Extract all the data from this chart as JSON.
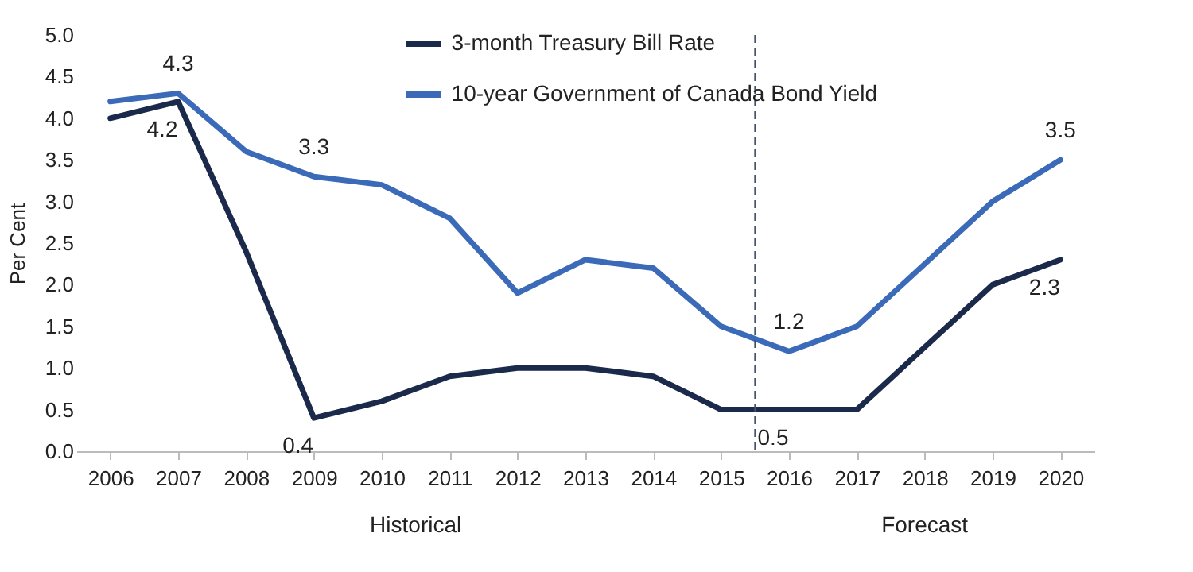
{
  "chart_data": {
    "type": "line",
    "x": [
      2006,
      2007,
      2008,
      2009,
      2010,
      2011,
      2012,
      2013,
      2014,
      2015,
      2016,
      2017,
      2018,
      2019,
      2020
    ],
    "series": [
      {
        "name": "3-month Treasury Bill Rate",
        "color": "#1b2a4a",
        "values": [
          4.0,
          4.2,
          2.4,
          0.4,
          0.6,
          0.9,
          1.0,
          1.0,
          0.9,
          0.5,
          0.5,
          0.5,
          1.25,
          2.0,
          2.3
        ],
        "value_labels": [
          null,
          "4.2",
          null,
          "0.4",
          null,
          null,
          null,
          null,
          null,
          null,
          "0.5",
          null,
          null,
          null,
          "2.3"
        ]
      },
      {
        "name": "10-year Government of Canada Bond Yield",
        "color": "#3a6ab8",
        "values": [
          4.2,
          4.3,
          3.6,
          3.3,
          3.2,
          2.8,
          1.9,
          2.3,
          2.2,
          1.5,
          1.2,
          1.5,
          2.25,
          3.0,
          3.5
        ],
        "value_labels": [
          null,
          "4.3",
          null,
          "3.3",
          null,
          null,
          null,
          null,
          null,
          null,
          "1.2",
          null,
          null,
          null,
          "3.5"
        ]
      }
    ],
    "ylabel": "Per Cent",
    "xlim": [
      2005.5,
      2020.5
    ],
    "xticks": [
      2006,
      2007,
      2008,
      2009,
      2010,
      2011,
      2012,
      2013,
      2014,
      2015,
      2016,
      2017,
      2018,
      2019,
      2020
    ],
    "ylim": [
      0,
      5
    ],
    "yticks": [
      {
        "value": 0,
        "label": "0.0"
      },
      {
        "value": 0.5,
        "label": "0.5"
      },
      {
        "value": 1,
        "label": "1.0"
      },
      {
        "value": 1.5,
        "label": "1.5"
      },
      {
        "value": 2,
        "label": "2.0"
      },
      {
        "value": 2.5,
        "label": "2.5"
      },
      {
        "value": 3,
        "label": "3.0"
      },
      {
        "value": 3.5,
        "label": "3.5"
      },
      {
        "value": 4,
        "label": "4.0"
      },
      {
        "value": 4.5,
        "label": "4.5"
      },
      {
        "value": 5,
        "label": "5.0"
      }
    ],
    "ref_lines": [
      {
        "axis": "x",
        "value": 2015.5,
        "color": "#44546a",
        "line_style": "dashed"
      }
    ],
    "annotations": [
      "Historical",
      "Forecast"
    ],
    "legend": "top",
    "grid": false,
    "marker": "none",
    "line_style": "solid"
  }
}
